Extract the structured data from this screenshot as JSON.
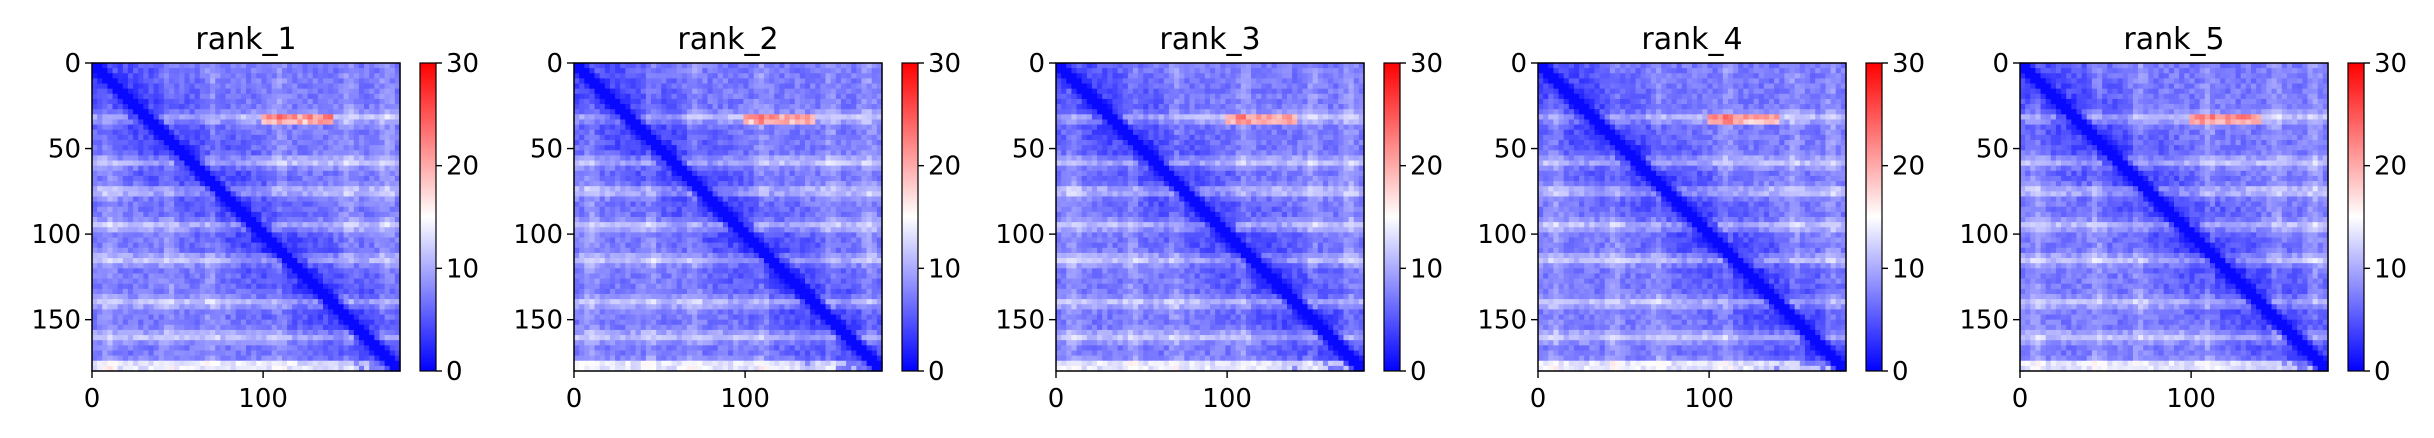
{
  "chart_data": [
    {
      "type": "heatmap",
      "title": "rank_1",
      "xlim": [
        0,
        180
      ],
      "ylim": [
        180,
        0
      ],
      "x_ticks": [
        "0",
        "100"
      ],
      "y_ticks": [
        "0",
        "50",
        "100",
        "150"
      ],
      "colorbar": {
        "ticks": [
          "0",
          "10",
          "20",
          "30"
        ],
        "range": [
          0,
          30
        ]
      },
      "bands": {
        "rows": [
          32,
          58,
          75,
          95,
          115,
          140,
          160,
          177
        ],
        "cols": [
          10,
          45,
          70,
          110,
          150,
          172
        ]
      }
    },
    {
      "type": "heatmap",
      "title": "rank_2",
      "xlim": [
        0,
        180
      ],
      "ylim": [
        180,
        0
      ],
      "x_ticks": [
        "0",
        "100"
      ],
      "y_ticks": [
        "0",
        "50",
        "100",
        "150"
      ],
      "colorbar": {
        "ticks": [
          "0",
          "10",
          "20",
          "30"
        ],
        "range": [
          0,
          30
        ]
      },
      "bands": {
        "rows": [
          32,
          58,
          75,
          95,
          115,
          140,
          160,
          177
        ],
        "cols": [
          10,
          45,
          70,
          110,
          150,
          172
        ]
      }
    },
    {
      "type": "heatmap",
      "title": "rank_3",
      "xlim": [
        0,
        180
      ],
      "ylim": [
        180,
        0
      ],
      "x_ticks": [
        "0",
        "100"
      ],
      "y_ticks": [
        "0",
        "50",
        "100",
        "150"
      ],
      "colorbar": {
        "ticks": [
          "0",
          "10",
          "20",
          "30"
        ],
        "range": [
          0,
          30
        ]
      },
      "bands": {
        "rows": [
          32,
          58,
          75,
          95,
          115,
          140,
          160,
          177
        ],
        "cols": [
          10,
          45,
          70,
          110,
          150,
          172
        ]
      }
    },
    {
      "type": "heatmap",
      "title": "rank_4",
      "xlim": [
        0,
        180
      ],
      "ylim": [
        180,
        0
      ],
      "x_ticks": [
        "0",
        "100"
      ],
      "y_ticks": [
        "0",
        "50",
        "100",
        "150"
      ],
      "colorbar": {
        "ticks": [
          "0",
          "10",
          "20",
          "30"
        ],
        "range": [
          0,
          30
        ]
      },
      "bands": {
        "rows": [
          32,
          58,
          75,
          95,
          115,
          140,
          160,
          177
        ],
        "cols": [
          10,
          45,
          70,
          110,
          150,
          172
        ]
      }
    },
    {
      "type": "heatmap",
      "title": "rank_5",
      "xlim": [
        0,
        180
      ],
      "ylim": [
        180,
        0
      ],
      "x_ticks": [
        "0",
        "100"
      ],
      "y_ticks": [
        "0",
        "50",
        "100",
        "150"
      ],
      "colorbar": {
        "ticks": [
          "0",
          "10",
          "20",
          "30"
        ],
        "range": [
          0,
          30
        ]
      },
      "bands": {
        "rows": [
          32,
          58,
          75,
          95,
          115,
          140,
          160,
          177
        ],
        "cols": [
          10,
          45,
          70,
          110,
          150,
          172
        ]
      }
    }
  ],
  "colors": {
    "low": "#0000ff",
    "mid": "#ffffff",
    "high": "#ff0000"
  }
}
